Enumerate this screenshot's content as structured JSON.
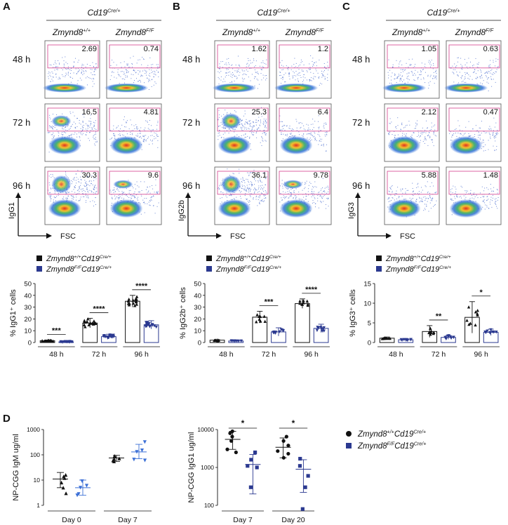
{
  "figure": {
    "panels": [
      {
        "letter": "A",
        "driver": "Cd19",
        "driver_sup": "Cre/+",
        "genotypes": [
          {
            "base": "Zmynd8",
            "sup": "+/+"
          },
          {
            "base": "Zmynd8",
            "sup": "F/F"
          }
        ],
        "timepoints": [
          "48 h",
          "72 h",
          "96 h"
        ],
        "values": [
          [
            "2.69",
            "0.74"
          ],
          [
            "16.5",
            "4.81"
          ],
          [
            "30.3",
            "9.6"
          ]
        ],
        "yaxis": "IgG1",
        "xaxis": "FSC"
      },
      {
        "letter": "B",
        "driver": "Cd19",
        "driver_sup": "Cre/+",
        "genotypes": [
          {
            "base": "Zmynd8",
            "sup": "+/+"
          },
          {
            "base": "Zmynd8",
            "sup": "F/F"
          }
        ],
        "timepoints": [
          "48 h",
          "72 h",
          "96 h"
        ],
        "values": [
          [
            "1.62",
            "1.2"
          ],
          [
            "25.3",
            "6.4"
          ],
          [
            "36.1",
            "9.78"
          ]
        ],
        "yaxis": "IgG2b",
        "xaxis": "FSC"
      },
      {
        "letter": "C",
        "driver": "Cd19",
        "driver_sup": "Cre/+",
        "genotypes": [
          {
            "base": "Zmynd8",
            "sup": "+/+"
          },
          {
            "base": "Zmynd8",
            "sup": "F/F"
          }
        ],
        "timepoints": [
          "48 h",
          "72 h",
          "96 h"
        ],
        "values": [
          [
            "1.05",
            "0.63"
          ],
          [
            "2.12",
            "0.47"
          ],
          [
            "5.88",
            "1.48"
          ]
        ],
        "yaxis": "IgG3",
        "xaxis": "FSC"
      }
    ],
    "panel_d_letter": "D",
    "legend": [
      {
        "base": "Zmynd8",
        "sup1": "+/+",
        "mid": "Cd19",
        "sup2": "Cre/+",
        "color": "#111111"
      },
      {
        "base": "Zmynd8",
        "sup1": "F/F",
        "mid": "Cd19",
        "sup2": "Cre/+",
        "color": "#2b3990"
      }
    ],
    "colors": {
      "wt": "#111111",
      "ko": "#2b3990",
      "ko_light": "#3b6fd6",
      "gate": "#d9559a"
    }
  },
  "chart_data": [
    {
      "id": "A-bar",
      "type": "bar",
      "ylabel": "% IgG1⁺ cells",
      "ylim": [
        0,
        50
      ],
      "yticks": [
        "0",
        "10",
        "20",
        "30",
        "40",
        "50"
      ],
      "categories": [
        "48 h",
        "72 h",
        "96 h"
      ],
      "series": [
        {
          "name": "Zmynd8 +/+ Cd19 Cre/+",
          "values": [
            1.5,
            16.5,
            35
          ],
          "err": [
            0.6,
            4,
            5
          ]
        },
        {
          "name": "Zmynd8 F/F Cd19 Cre/+",
          "values": [
            0.6,
            5,
            15
          ],
          "err": [
            0.3,
            2,
            3.5
          ]
        }
      ],
      "significance": [
        "***",
        "****",
        "****"
      ]
    },
    {
      "id": "B-bar",
      "type": "bar",
      "ylabel": "% IgG2b⁺ cells",
      "ylim": [
        0,
        50
      ],
      "yticks": [
        "0",
        "10",
        "20",
        "30",
        "40",
        "50"
      ],
      "categories": [
        "48 h",
        "72 h",
        "96 h"
      ],
      "series": [
        {
          "name": "Zmynd8 +/+ Cd19 Cre/+",
          "values": [
            2,
            21.5,
            33
          ],
          "err": [
            0.4,
            5,
            4
          ]
        },
        {
          "name": "Zmynd8 F/F Cd19 Cre/+",
          "values": [
            1.3,
            9,
            12
          ],
          "err": [
            0.3,
            3.5,
            3.5
          ]
        }
      ],
      "significance": [
        "",
        "***",
        "****"
      ]
    },
    {
      "id": "C-bar",
      "type": "bar",
      "ylabel": "% IgG3⁺ cells",
      "ylim": [
        0,
        15
      ],
      "yticks": [
        "0",
        "5",
        "10",
        "15"
      ],
      "categories": [
        "48 h",
        "72 h",
        "96 h"
      ],
      "series": [
        {
          "name": "Zmynd8 +/+ Cd19 Cre/+",
          "values": [
            1.1,
            2.8,
            6.4
          ],
          "err": [
            0.3,
            1.5,
            4
          ]
        },
        {
          "name": "Zmynd8 F/F Cd19 Cre/+",
          "values": [
            0.7,
            1.3,
            2.6
          ],
          "err": [
            0.2,
            0.5,
            0.8
          ]
        }
      ],
      "significance": [
        "",
        "**",
        "*"
      ]
    },
    {
      "id": "D-IgM",
      "type": "scatter",
      "ylabel": "NP-CGG IgM ug/ml",
      "yscale": "log",
      "ylim": [
        1,
        1000
      ],
      "yticks": [
        "1",
        "10",
        "100",
        "1000"
      ],
      "categories": [
        "Day 0",
        "Day 7"
      ],
      "series": [
        {
          "name": "Zmynd8 +/+ Cd19 Cre/+",
          "marker": "triangle-up",
          "means": [
            11,
            75
          ],
          "sd_low": [
            5,
            55
          ],
          "sd_high": [
            20,
            95
          ],
          "points": [
            [
              16,
              12,
              8,
              5,
              3,
              14
            ],
            [
              60,
              90,
              72,
              55,
              85,
              68
            ]
          ]
        },
        {
          "name": "Zmynd8 F/F Cd19 Cre/+",
          "marker": "triangle-down",
          "means": [
            5,
            130
          ],
          "sd_low": [
            2.5,
            70
          ],
          "sd_high": [
            10,
            260
          ],
          "points": [
            [
              9,
              5,
              2.5,
              2.8,
              6
            ],
            [
              320,
              150,
              130,
              60,
              65
            ]
          ]
        }
      ],
      "significance": [
        "",
        ""
      ]
    },
    {
      "id": "D-IgG1",
      "type": "scatter",
      "ylabel": "NP-CGG IgG1 ug/ml",
      "yscale": "log",
      "ylim": [
        100,
        10000
      ],
      "yticks": [
        "100",
        "1000",
        "10000"
      ],
      "categories": [
        "Day 7",
        "Day 20"
      ],
      "series": [
        {
          "name": "Zmynd8 +/+ Cd19 Cre/+",
          "marker": "circle",
          "means": [
            5500,
            3400
          ],
          "sd_low": [
            3000,
            1800
          ],
          "sd_high": [
            9000,
            6000
          ],
          "points": [
            [
              8000,
              9000,
              5000,
              3000,
              2500,
              6500
            ],
            [
              6500,
              3800,
              2300,
              5000,
              1800,
              2700
            ]
          ]
        },
        {
          "name": "Zmynd8 F/F Cd19 Cre/+",
          "marker": "square",
          "means": [
            1200,
            900
          ],
          "sd_low": [
            200,
            220
          ],
          "sd_high": [
            2200,
            1600
          ],
          "points": [
            [
              2500,
              1100,
              1600,
              300,
              1000
            ],
            [
              1700,
              1100,
              600,
              300,
              80
            ]
          ]
        }
      ],
      "significance": [
        "*",
        "*"
      ]
    }
  ]
}
